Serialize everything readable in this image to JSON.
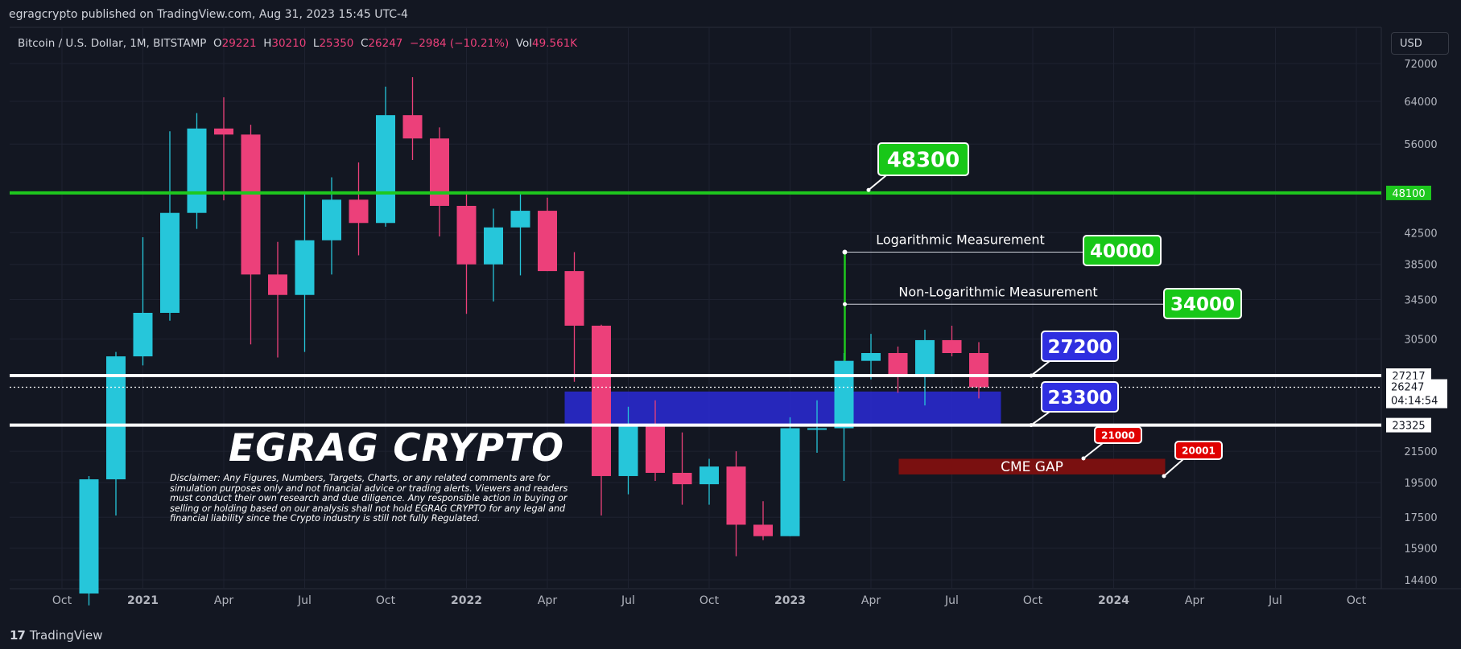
{
  "header": {
    "published_line": "egragcrypto published on TradingView.com, Aug 31, 2023 15:45 UTC-4"
  },
  "legend": {
    "symbol": "Bitcoin / U.S. Dollar, 1M, BITSTAMP",
    "o_label": "O",
    "o_value": "29221",
    "h_label": "H",
    "h_value": "30210",
    "l_label": "L",
    "l_value": "25350",
    "c_label": "C",
    "c_value": "26247",
    "change": "−2984 (−10.21%)",
    "vol_label": "Vol",
    "vol_value": "49.561K"
  },
  "currency_button": "USD",
  "footer": {
    "brand": "TradingView"
  },
  "watermark": "EGRAG CRYPTO",
  "disclaimer": "Disclaimer: Any Figures, Numbers, Targets, Charts, or any related comments are for simulation purposes only and not financial advice or trading alerts. Viewers and readers must conduct their own research and due diligence. Any responsible action in buying or selling or holding based on our analysis shall not hold EGRAG CRYPTO for any legal and financial liability since the Crypto industry is still not fully Regulated.",
  "colors": {
    "background": "#131722",
    "bull": "#26c6da",
    "bear": "#ec407a",
    "grid": "#1e2230",
    "axis_text": "#b2b5be",
    "green_line": "#1ec81e",
    "label_green": "#18c718",
    "label_blue": "#2f2fe0",
    "label_red": "#e00000",
    "cme_box": "#7a1010",
    "support_band": "#2929cc"
  },
  "chart_data": {
    "type": "candlestick",
    "scale": "log",
    "interval": "1M",
    "ylim": [
      14400,
      72000
    ],
    "y_ticks": [
      72000,
      64000,
      56000,
      48100,
      42500,
      38500,
      34500,
      30500,
      27217,
      26247,
      23325,
      21500,
      19500,
      17500,
      15900,
      14400
    ],
    "x_ticks": [
      {
        "label": "Oct",
        "date": "2020-10"
      },
      {
        "label": "2021",
        "date": "2021-01",
        "bold": true
      },
      {
        "label": "Apr",
        "date": "2021-04"
      },
      {
        "label": "Jul",
        "date": "2021-07"
      },
      {
        "label": "Oct",
        "date": "2021-10"
      },
      {
        "label": "2022",
        "date": "2022-01",
        "bold": true
      },
      {
        "label": "Apr",
        "date": "2022-04"
      },
      {
        "label": "Jul",
        "date": "2022-07"
      },
      {
        "label": "Oct",
        "date": "2022-10"
      },
      {
        "label": "2023",
        "date": "2023-01",
        "bold": true
      },
      {
        "label": "Apr",
        "date": "2023-04"
      },
      {
        "label": "Jul",
        "date": "2023-07"
      },
      {
        "label": "Oct",
        "date": "2023-10"
      },
      {
        "label": "2024",
        "date": "2024-01",
        "bold": true
      },
      {
        "label": "Apr",
        "date": "2024-04"
      },
      {
        "label": "Jul",
        "date": "2024-07"
      },
      {
        "label": "Oct",
        "date": "2024-10"
      }
    ],
    "candles": [
      {
        "date": "2020-11",
        "o": 13800,
        "h": 19900,
        "l": 13300,
        "c": 19700
      },
      {
        "date": "2020-12",
        "o": 19700,
        "h": 29300,
        "l": 17600,
        "c": 28900
      },
      {
        "date": "2021-01",
        "o": 28900,
        "h": 41900,
        "l": 28100,
        "c": 33100
      },
      {
        "date": "2021-02",
        "o": 33100,
        "h": 58300,
        "l": 32300,
        "c": 45200
      },
      {
        "date": "2021-03",
        "o": 45200,
        "h": 61700,
        "l": 43000,
        "c": 58800
      },
      {
        "date": "2021-04",
        "o": 58800,
        "h": 64800,
        "l": 47000,
        "c": 57700
      },
      {
        "date": "2021-05",
        "o": 57700,
        "h": 59500,
        "l": 30000,
        "c": 37300
      },
      {
        "date": "2021-06",
        "o": 37300,
        "h": 41300,
        "l": 28800,
        "c": 35000
      },
      {
        "date": "2021-07",
        "o": 35000,
        "h": 48100,
        "l": 29300,
        "c": 41500
      },
      {
        "date": "2021-08",
        "o": 41500,
        "h": 50500,
        "l": 37300,
        "c": 47100
      },
      {
        "date": "2021-09",
        "o": 47100,
        "h": 52900,
        "l": 39600,
        "c": 43800
      },
      {
        "date": "2021-10",
        "o": 43800,
        "h": 67000,
        "l": 43300,
        "c": 61300
      },
      {
        "date": "2021-11",
        "o": 61300,
        "h": 69000,
        "l": 53300,
        "c": 57000
      },
      {
        "date": "2021-12",
        "o": 57000,
        "h": 59000,
        "l": 42000,
        "c": 46200
      },
      {
        "date": "2022-01",
        "o": 46200,
        "h": 47900,
        "l": 33000,
        "c": 38500
      },
      {
        "date": "2022-02",
        "o": 38500,
        "h": 45800,
        "l": 34300,
        "c": 43200
      },
      {
        "date": "2022-03",
        "o": 43200,
        "h": 48200,
        "l": 37200,
        "c": 45500
      },
      {
        "date": "2022-04",
        "o": 45500,
        "h": 47400,
        "l": 37700,
        "c": 37700
      },
      {
        "date": "2022-05",
        "o": 37700,
        "h": 40000,
        "l": 26700,
        "c": 31800
      },
      {
        "date": "2022-06",
        "o": 31800,
        "h": 31900,
        "l": 17600,
        "c": 19900
      },
      {
        "date": "2022-07",
        "o": 19900,
        "h": 24700,
        "l": 18800,
        "c": 23300
      },
      {
        "date": "2022-08",
        "o": 23300,
        "h": 25200,
        "l": 19600,
        "c": 20100
      },
      {
        "date": "2022-09",
        "o": 20100,
        "h": 22800,
        "l": 18200,
        "c": 19400
      },
      {
        "date": "2022-10",
        "o": 19400,
        "h": 21000,
        "l": 18200,
        "c": 20500
      },
      {
        "date": "2022-11",
        "o": 20500,
        "h": 21500,
        "l": 15500,
        "c": 17100
      },
      {
        "date": "2022-12",
        "o": 17100,
        "h": 18400,
        "l": 16300,
        "c": 16500
      },
      {
        "date": "2023-01",
        "o": 16500,
        "h": 23900,
        "l": 16500,
        "c": 23100
      },
      {
        "date": "2023-02",
        "o": 23100,
        "h": 25200,
        "l": 21400,
        "c": 23100
      },
      {
        "date": "2023-03",
        "o": 23100,
        "h": 29200,
        "l": 19600,
        "c": 28500
      },
      {
        "date": "2023-04",
        "o": 28500,
        "h": 31000,
        "l": 26900,
        "c": 29200
      },
      {
        "date": "2023-05",
        "o": 29200,
        "h": 29800,
        "l": 25800,
        "c": 27200
      },
      {
        "date": "2023-06",
        "o": 27200,
        "h": 31400,
        "l": 24800,
        "c": 30400
      },
      {
        "date": "2023-07",
        "o": 30400,
        "h": 31800,
        "l": 28900,
        "c": 29200
      },
      {
        "date": "2023-08",
        "o": 29200,
        "h": 30210,
        "l": 25350,
        "c": 26247
      }
    ],
    "levels": [
      {
        "price": 48100,
        "color": "green",
        "label": "48100"
      },
      {
        "price": 27217,
        "color": "white",
        "label": "27217"
      },
      {
        "price": 23325,
        "color": "white",
        "label": "23325"
      },
      {
        "price": 26247,
        "color": "dotted",
        "label": "26247",
        "countdown": "04:14:54"
      }
    ],
    "support_band": {
      "from": "2022-05",
      "to": "2023-09",
      "low": 23325,
      "high": 25900
    },
    "cme_gap": {
      "label": "CME GAP",
      "from": "2023-05",
      "to": "2024-03",
      "low": 20001,
      "high": 21000
    },
    "callouts": [
      {
        "text": "48300",
        "style": "green",
        "price": 48300
      },
      {
        "text": "40000",
        "style": "green",
        "price": 40000
      },
      {
        "text": "34000",
        "style": "green",
        "price": 34000
      },
      {
        "text": "27200",
        "style": "blue",
        "price": 27217
      },
      {
        "text": "23300",
        "style": "blue",
        "price": 23325
      },
      {
        "text": "21000",
        "style": "red",
        "price": 21000
      },
      {
        "text": "20001",
        "style": "red",
        "price": 20001
      }
    ],
    "measurements": [
      {
        "text": "Logarithmic Measurement",
        "price": 40000
      },
      {
        "text": "Non-Logarithmic Measurement",
        "price": 34000
      }
    ],
    "measure_bar": {
      "date": "2023-03",
      "low": 28500,
      "high": 40000
    }
  }
}
